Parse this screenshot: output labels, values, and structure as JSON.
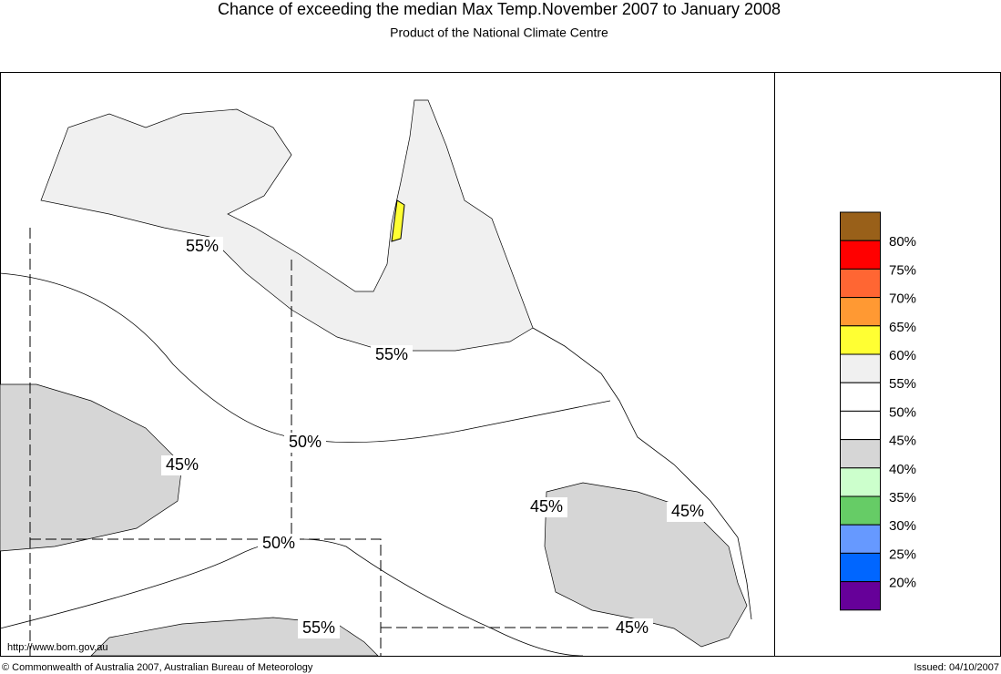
{
  "header": {
    "title": "Chance of exceeding the median Max Temp.November 2007 to January 2008",
    "subtitle": "Product of the National Climate Centre"
  },
  "map": {
    "contour_labels": [
      "55%",
      "55%",
      "50%",
      "45%",
      "50%",
      "45%",
      "45%",
      "55%",
      "45%"
    ]
  },
  "legend": {
    "colors": [
      "#996019",
      "#ff0000",
      "#ff6633",
      "#ff9933",
      "#ffff33",
      "#f0f0f0",
      "#ffffff",
      "#ffffff",
      "#d6d6d6",
      "#ccffcc",
      "#66cc66",
      "#6699ff",
      "#0066ff",
      "#660099"
    ],
    "labels": [
      "80%",
      "75%",
      "70%",
      "65%",
      "60%",
      "55%",
      "50%",
      "45%",
      "40%",
      "35%",
      "30%",
      "25%",
      "20%"
    ]
  },
  "footer": {
    "url": "http://www.bom.gov.au",
    "copyright": "© Commonwealth of Australia 2007, Australian Bureau of Meteorology",
    "issued": "Issued: 04/10/2007"
  }
}
